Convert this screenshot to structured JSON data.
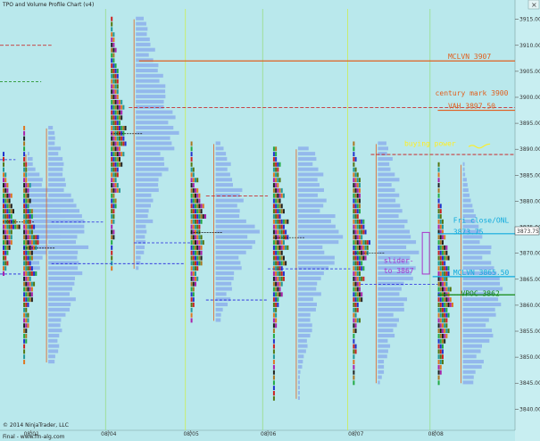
{
  "window": {
    "title": "TPO and Volume Profile Chart (v4)",
    "close_glyph": "×"
  },
  "footer": {
    "copyright": "© 2014 NinjaTrader, LLC",
    "url": "Final - www.fin-alg.com"
  },
  "colors": {
    "background": "#b9e8ec",
    "volume": "#93b8ec",
    "red": "#cc1111",
    "blue": "#2222dd",
    "green": "#118811",
    "orange": "#e06020",
    "cyan": "#11aadd",
    "purple": "#aa33cc",
    "yellow": "#ffee22"
  },
  "chart_data": {
    "type": "tpo-volume-profile",
    "y_axis": {
      "min": 3838,
      "max": 3917,
      "ticks": [
        3840,
        3845,
        3850,
        3855,
        3860,
        3865,
        3870,
        3875,
        3880,
        3885,
        3890,
        3895,
        3900,
        3905,
        3910,
        3915
      ]
    },
    "x_axis": {
      "labels": [
        {
          "text": "08/01",
          "x": 0.06
        },
        {
          "text": "08/04",
          "x": 0.21
        },
        {
          "text": "08/05",
          "x": 0.37
        },
        {
          "text": "08/06",
          "x": 0.52
        },
        {
          "text": "08/07",
          "x": 0.69
        },
        {
          "text": "08/08",
          "x": 0.845
        }
      ]
    },
    "last_price": "3873.75",
    "sessions": [
      {
        "id": "s0",
        "x": 0.0,
        "high": 3889,
        "low": 3866,
        "poc": 3876
      },
      {
        "id": "s1",
        "x": 0.04,
        "high": 3894,
        "low": 3849,
        "poc": 3871
      },
      {
        "id": "s2",
        "x": 0.21,
        "high": 3915,
        "low": 3867,
        "poc": 3893
      },
      {
        "id": "s3",
        "x": 0.365,
        "high": 3891,
        "low": 3857,
        "poc": 3874
      },
      {
        "id": "s4",
        "x": 0.525,
        "high": 3890,
        "low": 3842,
        "poc": 3873
      },
      {
        "id": "s5",
        "x": 0.68,
        "high": 3891,
        "low": 3845,
        "poc": 3870
      },
      {
        "id": "s6",
        "x": 0.845,
        "high": 3887,
        "low": 3845,
        "poc": 3862
      }
    ],
    "annotations": [
      {
        "text": "MCLVN 3907",
        "price": 3907,
        "color": "#e06020"
      },
      {
        "text": "century mark 3900",
        "price": 3900,
        "color": "#e06020"
      },
      {
        "text": "VAH 3897.50",
        "price": 3897.5,
        "color": "#e06020"
      },
      {
        "text": "buying power",
        "price": 3891,
        "color": "#ffee22"
      },
      {
        "text": "Fri close/ONL",
        "price": 3875.5,
        "color": "#11aadd"
      },
      {
        "text": "3873.75",
        "price": 3873.5,
        "color": "#11aadd"
      },
      {
        "text": "slider-",
        "price": 3868.5,
        "color": "#aa33cc"
      },
      {
        "text": "to 3867",
        "price": 3866.5,
        "color": "#aa33cc"
      },
      {
        "text": "MCLVN 3865.50",
        "price": 3865.5,
        "color": "#11aadd"
      },
      {
        "text": "VPOC 3862",
        "price": 3862,
        "color": "#118811"
      }
    ]
  }
}
